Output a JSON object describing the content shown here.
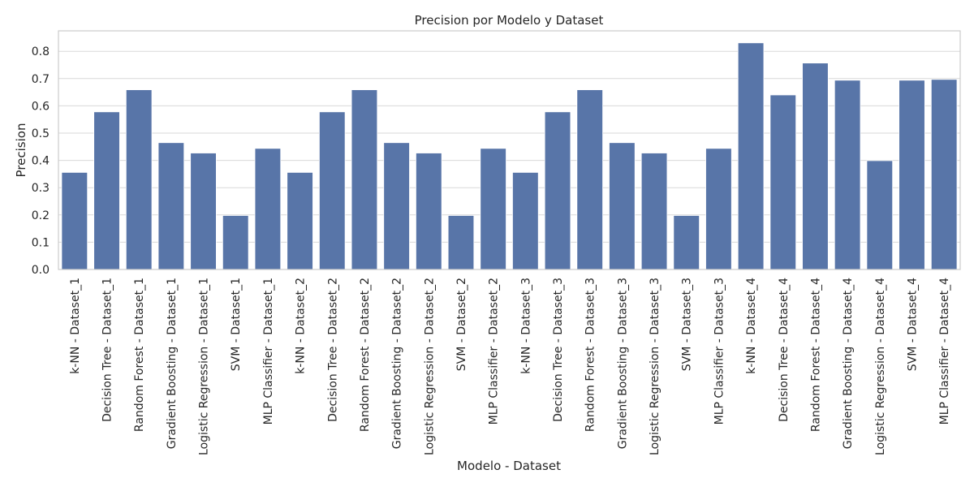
{
  "chart_data": {
    "type": "bar",
    "title": "Precision por Modelo y Dataset",
    "xlabel": "Modelo - Dataset",
    "ylabel": "Precision",
    "ylim": [
      0,
      0.875
    ],
    "yticks": [
      0.0,
      0.1,
      0.2,
      0.3,
      0.4,
      0.5,
      0.6,
      0.7,
      0.8
    ],
    "grid": true,
    "bar_color": "#5875a8",
    "categories": [
      "k-NN - Dataset_1",
      "Decision Tree - Dataset_1",
      "Random Forest - Dataset_1",
      "Gradient Boosting - Dataset_1",
      "Logistic Regression - Dataset_1",
      "SVM - Dataset_1",
      "MLP Classifier - Dataset_1",
      "k-NN - Dataset_2",
      "Decision Tree - Dataset_2",
      "Random Forest - Dataset_2",
      "Gradient Boosting - Dataset_2",
      "Logistic Regression - Dataset_2",
      "SVM - Dataset_2",
      "MLP Classifier - Dataset_2",
      "k-NN - Dataset_3",
      "Decision Tree - Dataset_3",
      "Random Forest - Dataset_3",
      "Gradient Boosting - Dataset_3",
      "Logistic Regression - Dataset_3",
      "SVM - Dataset_3",
      "MLP Classifier - Dataset_3",
      "k-NN - Dataset_4",
      "Decision Tree - Dataset_4",
      "Random Forest - Dataset_4",
      "Gradient Boosting - Dataset_4",
      "Logistic Regression - Dataset_4",
      "SVM - Dataset_4",
      "MLP Classifier - Dataset_4"
    ],
    "values": [
      0.356,
      0.578,
      0.659,
      0.465,
      0.427,
      0.198,
      0.444,
      0.356,
      0.578,
      0.659,
      0.465,
      0.427,
      0.198,
      0.444,
      0.356,
      0.578,
      0.659,
      0.465,
      0.427,
      0.198,
      0.444,
      0.831,
      0.64,
      0.757,
      0.694,
      0.399,
      0.694,
      0.697
    ]
  }
}
